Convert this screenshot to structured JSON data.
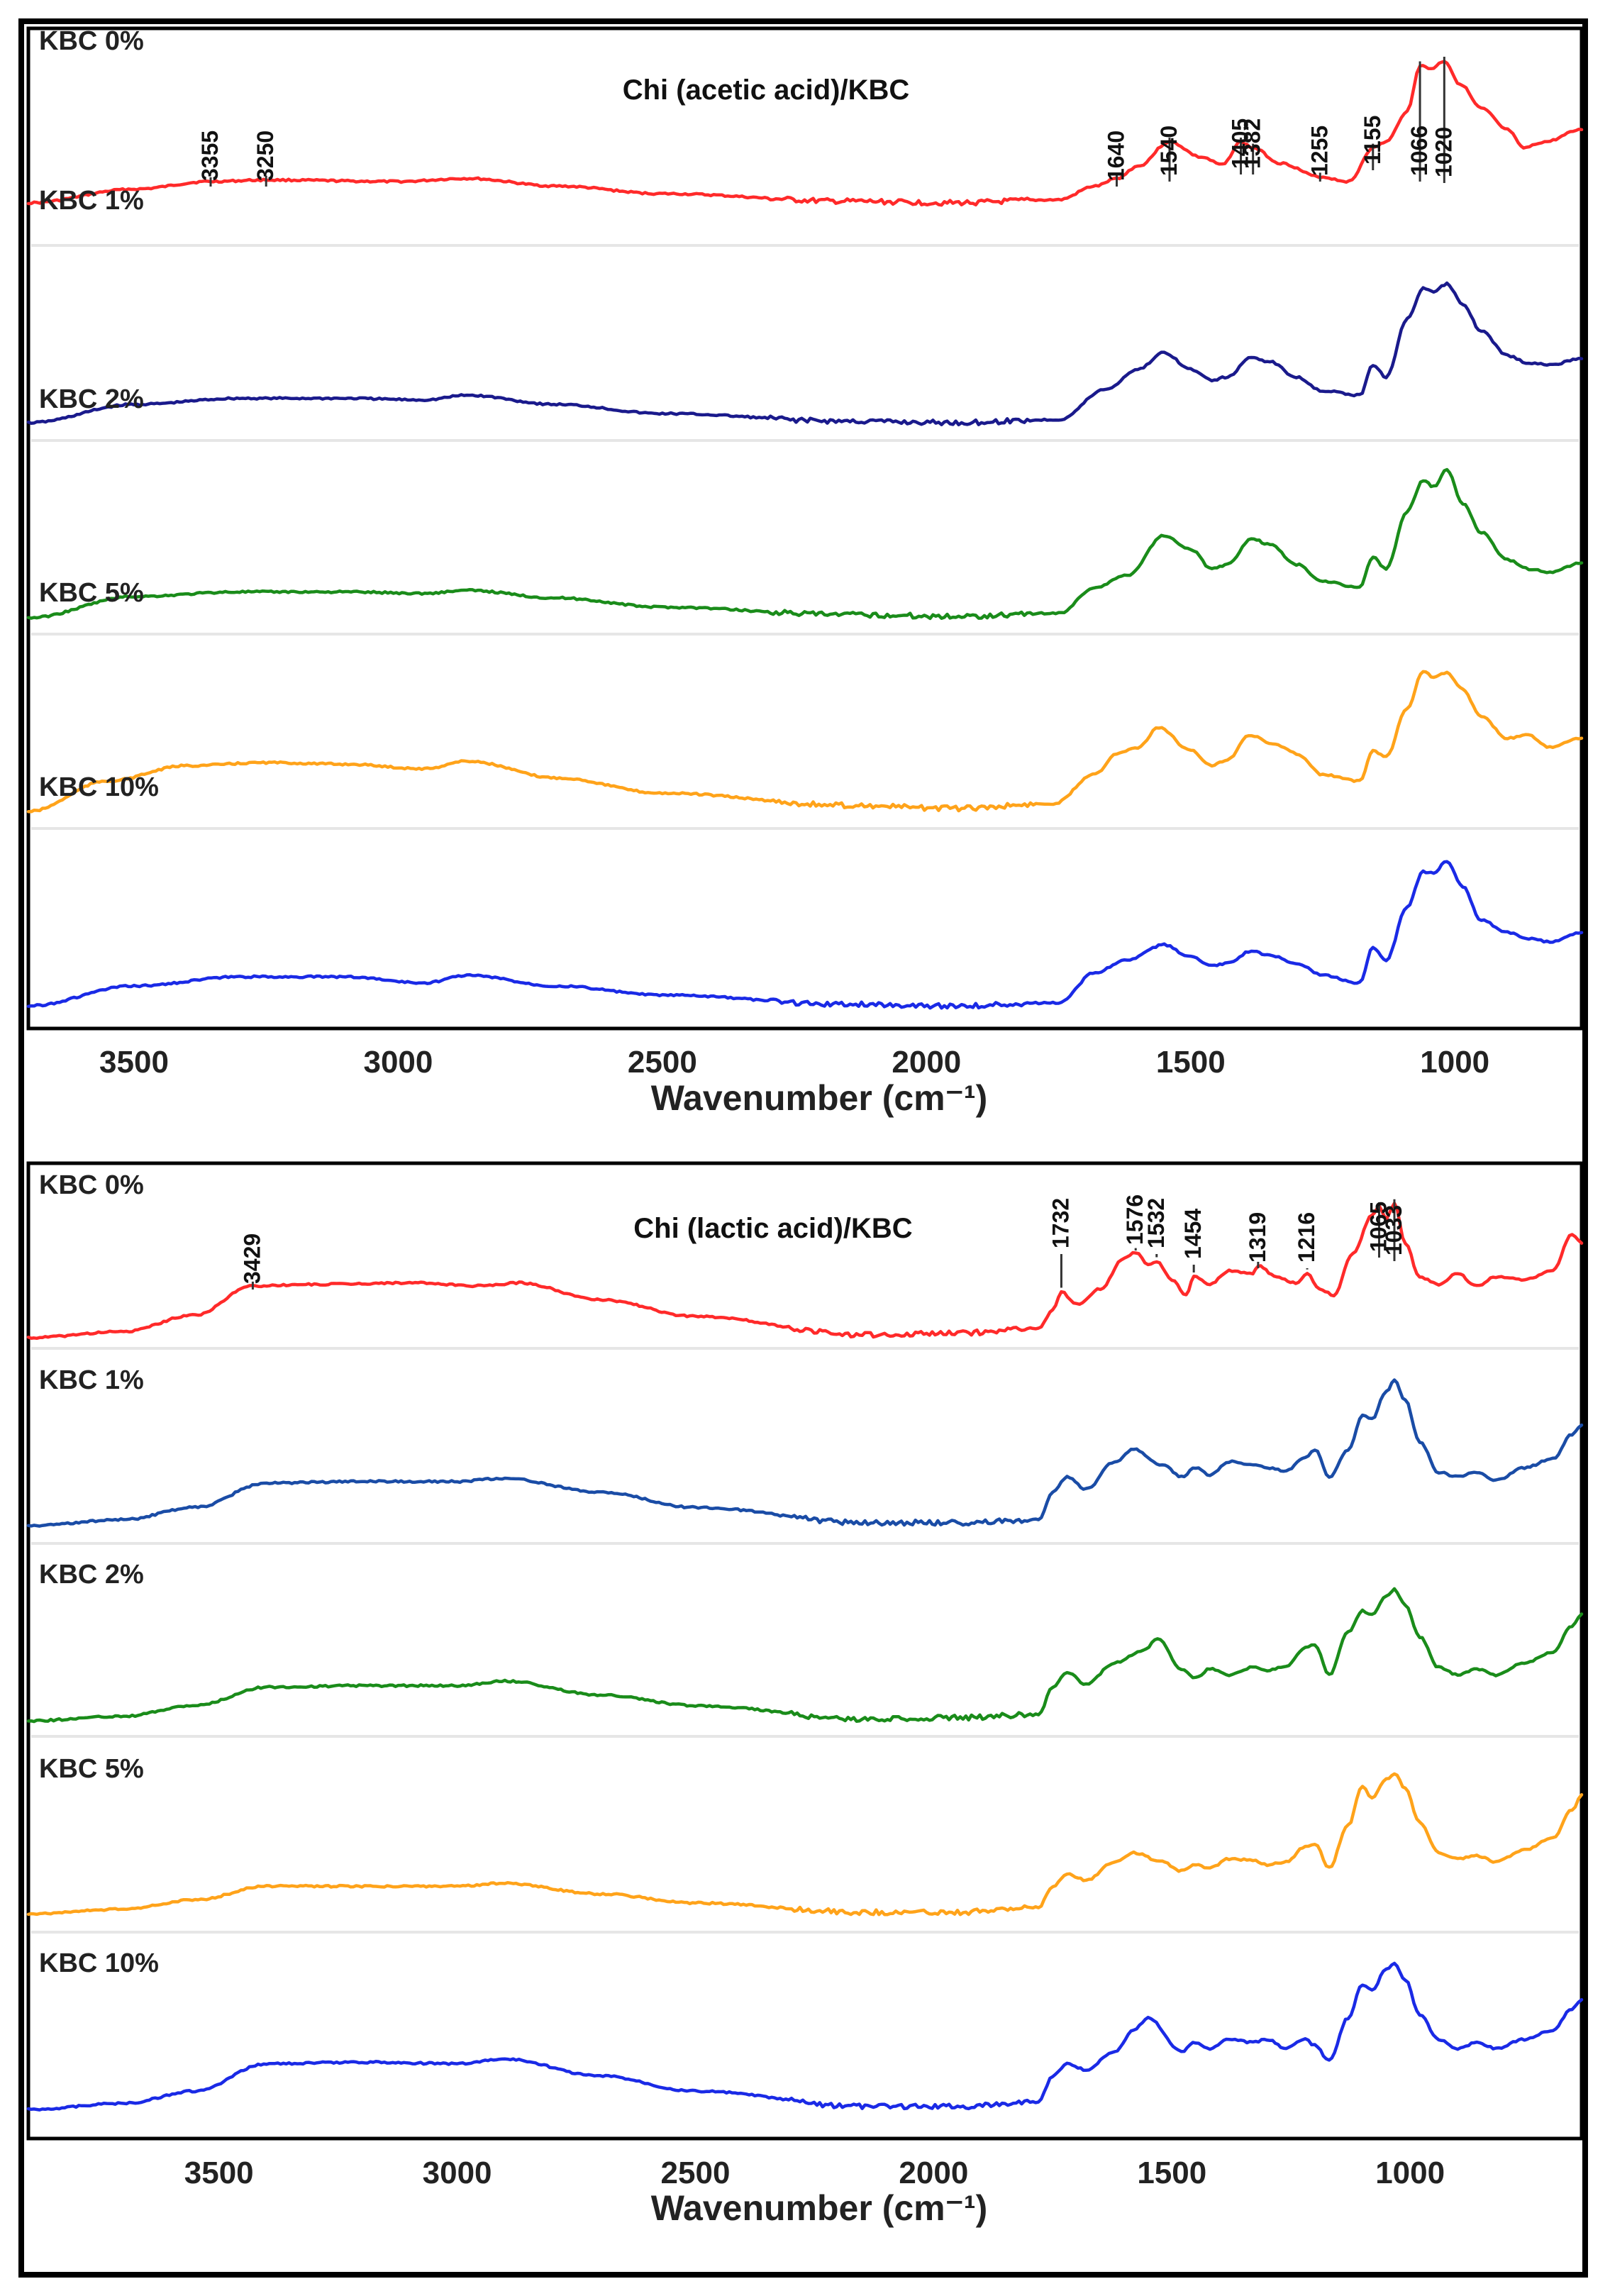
{
  "figure": {
    "colors": {
      "red": "#ff2a2a",
      "navy": "#1a1a8c",
      "green": "#1a8c1a",
      "orange": "#ffa31a",
      "blue": "#1a2ae6",
      "steelblue": "#1a4ca6"
    }
  },
  "chart_data": [
    {
      "type": "line",
      "title": "Chi (acetic acid)/KBC",
      "xlabel": "Wavenumber (cm⁻¹)",
      "ylabel": "",
      "xlim": [
        3700,
        760
      ],
      "xticks": [
        3500,
        3000,
        2500,
        2000,
        1500,
        1000
      ],
      "xtick_labels": [
        "3500",
        "3000",
        "2500",
        "2000",
        "1500",
        "1000"
      ],
      "series": [
        {
          "name": "KBC 0%",
          "color": "red",
          "x": [
            3700,
            3500,
            3355,
            3250,
            3000,
            2870,
            2700,
            2500,
            2150,
            1950,
            1750,
            1680,
            1640,
            1600,
            1540,
            1480,
            1440,
            1405,
            1382,
            1330,
            1255,
            1200,
            1155,
            1130,
            1090,
            1066,
            1045,
            1020,
            990,
            950,
            900,
            870,
            830,
            760
          ],
          "y": [
            0.0,
            0.09,
            0.14,
            0.15,
            0.14,
            0.16,
            0.11,
            0.06,
            0.01,
            0.0,
            0.02,
            0.11,
            0.16,
            0.24,
            0.4,
            0.3,
            0.25,
            0.4,
            0.36,
            0.26,
            0.17,
            0.14,
            0.36,
            0.4,
            0.6,
            0.9,
            0.88,
            0.93,
            0.78,
            0.62,
            0.48,
            0.36,
            0.4,
            0.48
          ]
        },
        {
          "name": "KBC 1%",
          "color": "navy",
          "x": [
            3700,
            3500,
            3300,
            3100,
            2950,
            2870,
            2700,
            2500,
            2150,
            1950,
            1750,
            1660,
            1600,
            1550,
            1500,
            1460,
            1430,
            1385,
            1350,
            1300,
            1250,
            1180,
            1155,
            1130,
            1090,
            1060,
            1040,
            1015,
            985,
            950,
            900,
            860,
            820,
            760
          ],
          "y": [
            0.0,
            0.12,
            0.16,
            0.16,
            0.15,
            0.18,
            0.12,
            0.06,
            0.01,
            0.0,
            0.02,
            0.22,
            0.35,
            0.46,
            0.35,
            0.28,
            0.3,
            0.43,
            0.4,
            0.3,
            0.21,
            0.18,
            0.38,
            0.3,
            0.68,
            0.88,
            0.86,
            0.91,
            0.78,
            0.6,
            0.44,
            0.39,
            0.38,
            0.42
          ]
        },
        {
          "name": "KBC 2%",
          "color": "green",
          "x": [
            3700,
            3500,
            3300,
            3100,
            2950,
            2870,
            2700,
            2500,
            2150,
            1950,
            1750,
            1680,
            1620,
            1550,
            1500,
            1460,
            1430,
            1385,
            1350,
            1300,
            1250,
            1180,
            1155,
            1130,
            1090,
            1060,
            1040,
            1015,
            985,
            950,
            900,
            860,
            820,
            760
          ],
          "y": [
            0.0,
            0.14,
            0.17,
            0.17,
            0.16,
            0.18,
            0.13,
            0.07,
            0.02,
            0.01,
            0.03,
            0.2,
            0.28,
            0.54,
            0.45,
            0.32,
            0.35,
            0.52,
            0.48,
            0.35,
            0.24,
            0.2,
            0.4,
            0.32,
            0.7,
            0.9,
            0.86,
            0.97,
            0.75,
            0.56,
            0.38,
            0.32,
            0.3,
            0.36
          ]
        },
        {
          "name": "KBC 5%",
          "color": "orange",
          "x": [
            3700,
            3550,
            3400,
            3250,
            3100,
            2950,
            2870,
            2700,
            2500,
            2150,
            1950,
            1760,
            1680,
            1640,
            1600,
            1560,
            1500,
            1460,
            1430,
            1390,
            1340,
            1300,
            1250,
            1180,
            1155,
            1130,
            1090,
            1060,
            1040,
            1015,
            985,
            950,
            900,
            860,
            820,
            760
          ],
          "y": [
            0.0,
            0.2,
            0.3,
            0.32,
            0.31,
            0.28,
            0.33,
            0.22,
            0.12,
            0.04,
            0.02,
            0.05,
            0.25,
            0.38,
            0.42,
            0.55,
            0.4,
            0.3,
            0.34,
            0.5,
            0.44,
            0.38,
            0.24,
            0.2,
            0.4,
            0.36,
            0.68,
            0.92,
            0.88,
            0.91,
            0.8,
            0.62,
            0.48,
            0.5,
            0.42,
            0.48
          ]
        },
        {
          "name": "KBC 10%",
          "color": "blue",
          "x": [
            3700,
            3500,
            3300,
            3100,
            2950,
            2870,
            2700,
            2500,
            2150,
            1950,
            1750,
            1680,
            1620,
            1550,
            1500,
            1460,
            1430,
            1385,
            1350,
            1300,
            1250,
            1180,
            1155,
            1130,
            1090,
            1060,
            1040,
            1015,
            985,
            950,
            900,
            860,
            820,
            760
          ],
          "y": [
            0.0,
            0.13,
            0.19,
            0.19,
            0.15,
            0.2,
            0.13,
            0.07,
            0.01,
            0.0,
            0.02,
            0.22,
            0.3,
            0.4,
            0.32,
            0.26,
            0.28,
            0.36,
            0.33,
            0.28,
            0.2,
            0.15,
            0.38,
            0.3,
            0.65,
            0.88,
            0.87,
            0.95,
            0.78,
            0.56,
            0.48,
            0.44,
            0.42,
            0.48
          ]
        }
      ],
      "annotations": [
        {
          "text": "3355",
          "x": 3355
        },
        {
          "text": "3250",
          "x": 3250
        },
        {
          "text": "1640",
          "x": 1640
        },
        {
          "text": "1540",
          "x": 1540
        },
        {
          "text": "1405",
          "x": 1405
        },
        {
          "text": "1382",
          "x": 1382
        },
        {
          "text": "1255",
          "x": 1255
        },
        {
          "text": "1155",
          "x": 1155
        },
        {
          "text": "1066",
          "x": 1066
        },
        {
          "text": "1020",
          "x": 1020
        }
      ]
    },
    {
      "type": "line",
      "title": "Chi (lactic acid)/KBC",
      "xlabel": "Wavenumber (cm⁻¹)",
      "ylabel": "",
      "xlim": [
        3900,
        640
      ],
      "xticks": [
        3500,
        3000,
        2500,
        2000,
        1500,
        1000
      ],
      "xtick_labels": [
        "3500",
        "3000",
        "2500",
        "2000",
        "1500",
        "1000"
      ],
      "series": [
        {
          "name": "KBC 0%",
          "color": "red",
          "x": [
            3900,
            3700,
            3550,
            3429,
            3300,
            3100,
            2950,
            2870,
            2700,
            2500,
            2150,
            1950,
            1780,
            1750,
            1732,
            1700,
            1650,
            1600,
            1576,
            1550,
            1532,
            1500,
            1470,
            1454,
            1420,
            1380,
            1330,
            1319,
            1280,
            1240,
            1216,
            1190,
            1160,
            1120,
            1080,
            1065,
            1050,
            1033,
            1010,
            980,
            940,
            900,
            860,
            820,
            760,
            700,
            660,
            640
          ],
          "y": [
            0.0,
            0.04,
            0.15,
            0.34,
            0.35,
            0.36,
            0.34,
            0.36,
            0.25,
            0.14,
            0.02,
            0.03,
            0.06,
            0.18,
            0.3,
            0.22,
            0.32,
            0.52,
            0.56,
            0.48,
            0.5,
            0.38,
            0.28,
            0.4,
            0.35,
            0.44,
            0.42,
            0.47,
            0.4,
            0.36,
            0.42,
            0.32,
            0.28,
            0.55,
            0.8,
            0.86,
            0.78,
            0.88,
            0.62,
            0.4,
            0.35,
            0.42,
            0.34,
            0.4,
            0.38,
            0.44,
            0.68,
            0.62
          ]
        },
        {
          "name": "KBC 1%",
          "color": "steelblue",
          "x": [
            3900,
            3700,
            3550,
            3400,
            3200,
            3000,
            2900,
            2700,
            2500,
            2150,
            1950,
            1780,
            1750,
            1720,
            1680,
            1620,
            1580,
            1520,
            1480,
            1450,
            1420,
            1380,
            1330,
            1300,
            1260,
            1220,
            1200,
            1170,
            1130,
            1100,
            1080,
            1050,
            1033,
            1010,
            980,
            940,
            900,
            860,
            820,
            760,
            700,
            660,
            640
          ],
          "y": [
            0.0,
            0.04,
            0.12,
            0.28,
            0.29,
            0.29,
            0.31,
            0.22,
            0.12,
            0.02,
            0.02,
            0.04,
            0.22,
            0.32,
            0.24,
            0.42,
            0.5,
            0.4,
            0.32,
            0.38,
            0.33,
            0.42,
            0.4,
            0.38,
            0.36,
            0.45,
            0.5,
            0.32,
            0.5,
            0.72,
            0.7,
            0.88,
            0.95,
            0.82,
            0.55,
            0.35,
            0.32,
            0.35,
            0.3,
            0.38,
            0.44,
            0.6,
            0.66
          ]
        },
        {
          "name": "KBC 2%",
          "color": "green",
          "x": [
            3900,
            3700,
            3550,
            3400,
            3200,
            3000,
            2900,
            2700,
            2500,
            2150,
            1950,
            1780,
            1750,
            1720,
            1680,
            1620,
            1560,
            1530,
            1480,
            1450,
            1420,
            1380,
            1330,
            1300,
            1260,
            1220,
            1200,
            1170,
            1130,
            1100,
            1080,
            1050,
            1033,
            1010,
            980,
            940,
            900,
            860,
            820,
            760,
            700,
            660,
            640
          ],
          "y": [
            0.0,
            0.03,
            0.1,
            0.22,
            0.23,
            0.23,
            0.26,
            0.17,
            0.1,
            0.01,
            0.02,
            0.04,
            0.22,
            0.32,
            0.24,
            0.38,
            0.46,
            0.54,
            0.34,
            0.28,
            0.34,
            0.3,
            0.35,
            0.33,
            0.36,
            0.48,
            0.5,
            0.3,
            0.58,
            0.72,
            0.7,
            0.82,
            0.86,
            0.76,
            0.55,
            0.35,
            0.3,
            0.34,
            0.3,
            0.38,
            0.45,
            0.62,
            0.7
          ]
        },
        {
          "name": "KBC 5%",
          "color": "orange",
          "x": [
            3900,
            3700,
            3550,
            3400,
            3200,
            3000,
            2900,
            2700,
            2500,
            2150,
            1950,
            1780,
            1750,
            1720,
            1680,
            1620,
            1580,
            1520,
            1480,
            1450,
            1420,
            1380,
            1330,
            1300,
            1260,
            1220,
            1200,
            1170,
            1130,
            1100,
            1080,
            1050,
            1033,
            1010,
            980,
            940,
            900,
            860,
            820,
            760,
            700,
            660,
            640
          ],
          "y": [
            0.0,
            0.03,
            0.09,
            0.18,
            0.18,
            0.18,
            0.2,
            0.13,
            0.07,
            0.01,
            0.01,
            0.04,
            0.18,
            0.26,
            0.22,
            0.34,
            0.4,
            0.34,
            0.28,
            0.32,
            0.3,
            0.36,
            0.35,
            0.32,
            0.34,
            0.44,
            0.46,
            0.3,
            0.58,
            0.84,
            0.76,
            0.88,
            0.92,
            0.82,
            0.6,
            0.4,
            0.36,
            0.38,
            0.34,
            0.42,
            0.5,
            0.68,
            0.78
          ]
        },
        {
          "name": "KBC 10%",
          "color": "blue",
          "x": [
            3900,
            3700,
            3550,
            3400,
            3200,
            3000,
            2900,
            2700,
            2500,
            2150,
            1950,
            1780,
            1750,
            1720,
            1680,
            1620,
            1580,
            1550,
            1480,
            1450,
            1420,
            1380,
            1330,
            1300,
            1260,
            1220,
            1200,
            1170,
            1130,
            1100,
            1080,
            1050,
            1033,
            1010,
            980,
            940,
            900,
            860,
            820,
            760,
            700,
            660,
            640
          ],
          "y": [
            0.0,
            0.04,
            0.12,
            0.3,
            0.31,
            0.3,
            0.33,
            0.22,
            0.12,
            0.02,
            0.02,
            0.05,
            0.22,
            0.3,
            0.26,
            0.38,
            0.52,
            0.6,
            0.38,
            0.44,
            0.4,
            0.46,
            0.44,
            0.46,
            0.4,
            0.46,
            0.42,
            0.32,
            0.6,
            0.82,
            0.78,
            0.92,
            0.96,
            0.85,
            0.62,
            0.46,
            0.4,
            0.44,
            0.4,
            0.46,
            0.52,
            0.66,
            0.72
          ]
        }
      ],
      "annotations": [
        {
          "text": "3429",
          "x": 3429
        },
        {
          "text": "1732",
          "x": 1732
        },
        {
          "text": "1576",
          "x": 1576
        },
        {
          "text": "1532",
          "x": 1532
        },
        {
          "text": "1454",
          "x": 1454
        },
        {
          "text": "1319",
          "x": 1319
        },
        {
          "text": "1216",
          "x": 1216
        },
        {
          "text": "1065",
          "x": 1065
        },
        {
          "text": "1033",
          "x": 1033
        }
      ]
    }
  ]
}
